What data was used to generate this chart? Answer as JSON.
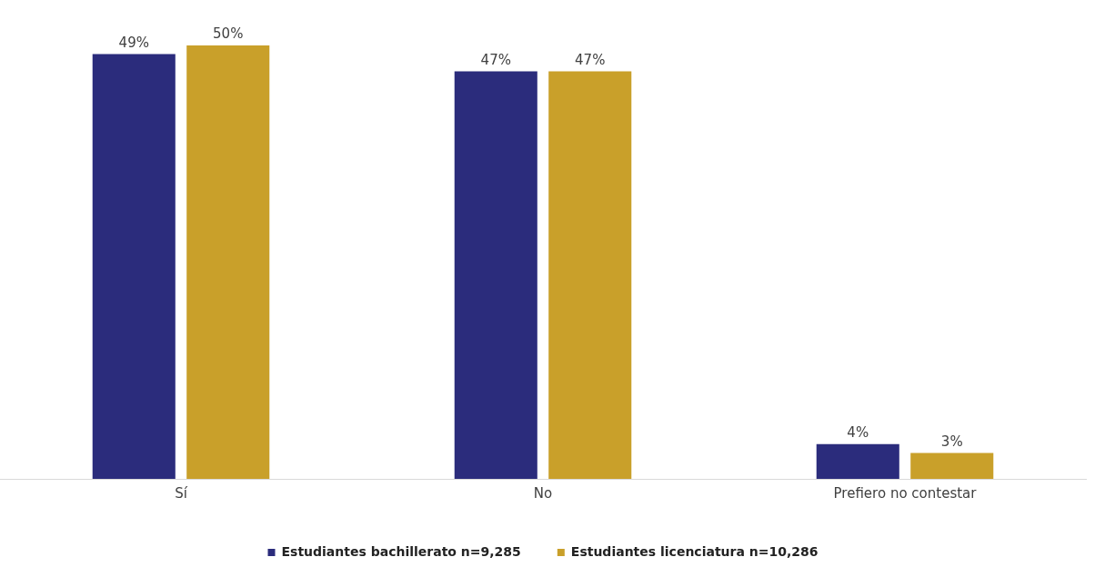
{
  "chart_data": {
    "type": "bar",
    "categories": [
      "Sí",
      "No",
      "Prefiero no contestar"
    ],
    "series": [
      {
        "name": "Estudiantes bachillerato n=9,285",
        "color": "#2b2c7c",
        "values": [
          49,
          47,
          4
        ],
        "value_labels": [
          "49%",
          "47%",
          "4%"
        ]
      },
      {
        "name": "Estudiantes licenciatura n=10,286",
        "color": "#c9a02a",
        "values": [
          50,
          47,
          3
        ],
        "value_labels": [
          "50%",
          "47%",
          "3%"
        ]
      }
    ],
    "legend": "bottom",
    "grid": false,
    "tick_labels": "x"
  }
}
